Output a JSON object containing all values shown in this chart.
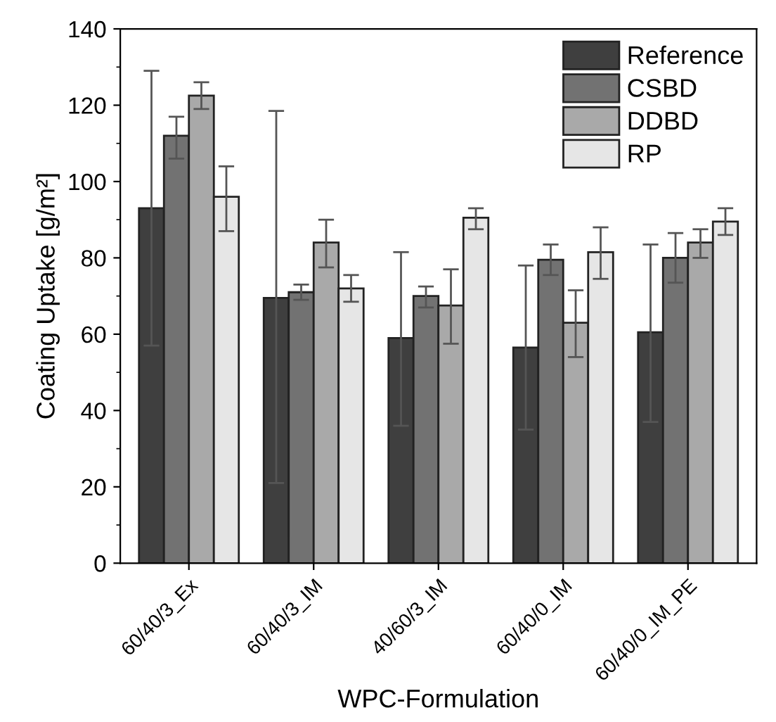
{
  "chart_data": {
    "type": "bar",
    "xlabel": "WPC-Formulation",
    "ylabel": "Coating Uptake [g/m²]",
    "categories": [
      "60/40/3_Ex",
      "60/40/3_IM",
      "40/60/3_IM",
      "60/40/0_IM",
      "60/40/0_IM_PE"
    ],
    "series": [
      {
        "name": "Reference",
        "color": "#3f3f3f",
        "values": [
          93,
          69.5,
          59,
          56.5,
          60.5
        ],
        "errors": [
          [
            57,
            129
          ],
          [
            21,
            118.5
          ],
          [
            36,
            81.5
          ],
          [
            35,
            78
          ],
          [
            37,
            83.5
          ]
        ]
      },
      {
        "name": "CSBD",
        "color": "#727272",
        "values": [
          112,
          71,
          70,
          79.5,
          80
        ],
        "errors": [
          [
            106,
            117
          ],
          [
            69,
            73
          ],
          [
            67,
            72.5
          ],
          [
            75.5,
            83.5
          ],
          [
            73.5,
            86.5
          ]
        ]
      },
      {
        "name": "DDBD",
        "color": "#a9a9a9",
        "values": [
          122.5,
          84,
          67.5,
          63,
          84
        ],
        "errors": [
          [
            119,
            126
          ],
          [
            77.5,
            90
          ],
          [
            57.5,
            77
          ],
          [
            54,
            71.5
          ],
          [
            80,
            87.5
          ]
        ]
      },
      {
        "name": "RP",
        "color": "#e6e6e6",
        "values": [
          96,
          72,
          90.5,
          81.5,
          89.5
        ],
        "errors": [
          [
            87,
            104
          ],
          [
            68.5,
            75.5
          ],
          [
            87.5,
            93
          ],
          [
            74.5,
            88
          ],
          [
            86,
            93
          ]
        ]
      }
    ],
    "ylim": [
      0,
      140
    ],
    "yticks": [
      0,
      20,
      40,
      60,
      80,
      100,
      120,
      140
    ],
    "grid": false,
    "legend": "top right"
  }
}
